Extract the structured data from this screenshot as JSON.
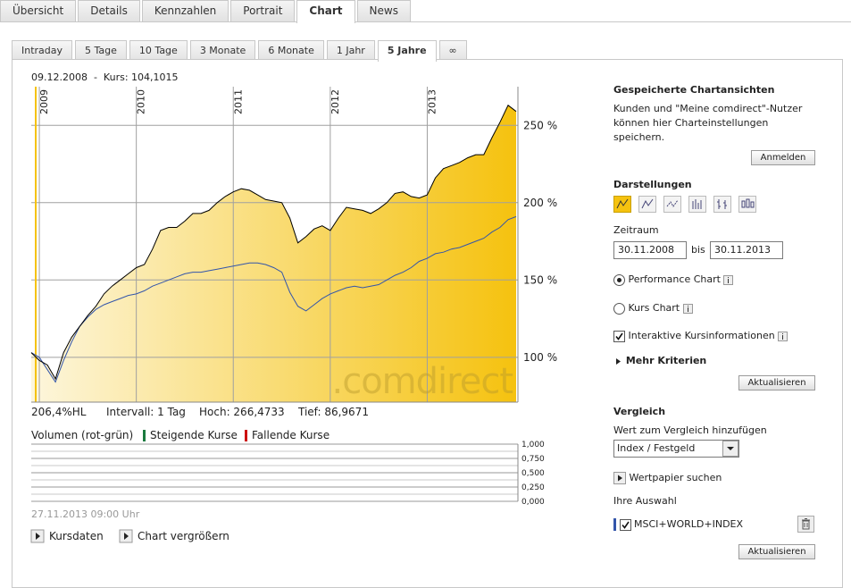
{
  "tabs": [
    "Übersicht",
    "Details",
    "Kennzahlen",
    "Portrait",
    "Chart",
    "News"
  ],
  "active_tab": 4,
  "range_tabs": [
    "Intraday",
    "5 Tage",
    "10 Tage",
    "3 Monate",
    "6 Monate",
    "1 Jahr",
    "5 Jahre",
    "∞"
  ],
  "active_range": 6,
  "chart_data": [
    {
      "type": "line",
      "header": "09.12.2008  -  Kurs: 104,1015",
      "watermark": ".comdirect",
      "stats": [
        "206,4%HL",
        "Intervall: 1 Tag",
        "Hoch: 266,4733",
        "Tief: 86,9671"
      ],
      "categories": [
        null,
        "2009",
        null,
        null,
        null,
        null,
        null,
        null,
        null,
        null,
        null,
        null,
        null,
        "2010",
        null,
        null,
        null,
        null,
        null,
        null,
        null,
        null,
        null,
        null,
        null,
        "2011",
        null,
        null,
        null,
        null,
        null,
        null,
        null,
        null,
        null,
        null,
        null,
        "2012",
        null,
        null,
        null,
        null,
        null,
        null,
        null,
        null,
        null,
        null,
        null,
        "2013",
        null,
        null,
        null,
        null,
        null,
        null,
        null,
        null,
        null,
        null,
        null
      ],
      "series": [
        {
          "color": "#000000",
          "fill": [
            "#fdf6dc",
            "#f5c20f"
          ],
          "values": [
            103,
            98,
            95,
            86,
            103,
            113,
            120,
            127,
            133,
            141,
            146,
            150,
            154,
            158,
            160,
            170,
            182,
            184,
            184,
            188,
            193,
            193,
            195,
            200,
            204,
            207,
            209,
            208,
            205,
            202,
            201,
            200,
            190,
            174,
            178,
            183,
            185,
            182,
            190,
            197,
            196,
            195,
            193,
            196,
            200,
            206,
            207,
            204,
            203,
            205,
            216,
            222,
            224,
            226,
            229,
            231,
            231,
            242,
            252,
            263,
            259
          ]
        },
        {
          "color": "#3355aa",
          "values": [
            103,
            100,
            92,
            84,
            98,
            110,
            120,
            126,
            131,
            134,
            136,
            138,
            140,
            141,
            143,
            146,
            148,
            150,
            152,
            154,
            155,
            155,
            156,
            157,
            158,
            159,
            160,
            161,
            161,
            160,
            158,
            155,
            142,
            133,
            130,
            134,
            138,
            141,
            143,
            145,
            146,
            145,
            146,
            147,
            150,
            153,
            155,
            158,
            162,
            164,
            167,
            168,
            170,
            171,
            173,
            175,
            177,
            181,
            184,
            189,
            191
          ]
        }
      ],
      "ylim": [
        71,
        275
      ],
      "yticks": [
        {
          "value": 100,
          "label": "100 %"
        },
        {
          "value": 150,
          "label": "150 %"
        },
        {
          "value": 200,
          "label": "200 %"
        },
        {
          "value": 250,
          "label": "250 %"
        }
      ],
      "grid": true
    },
    {
      "type": "bar",
      "title": "Volumen (rot-grün)",
      "legend": [
        {
          "name": "Steigende Kurse",
          "color": "#1b7a3e"
        },
        {
          "name": "Fallende Kurse",
          "color": "#cc1111"
        }
      ],
      "ylim": [
        0,
        1
      ],
      "yticks": [
        {
          "value": 0,
          "label": "0,000"
        },
        {
          "value": 0.25,
          "label": "0,250"
        },
        {
          "value": 0.5,
          "label": "0,500"
        },
        {
          "value": 0.75,
          "label": "0,750"
        },
        {
          "value": 1,
          "label": "1,000"
        }
      ],
      "grid": true,
      "footnote": "27.11.2013 09:00 Uhr"
    }
  ],
  "buttons": [
    "Kursdaten",
    "Chart vergrößern"
  ],
  "sidebar": {
    "saved": {
      "title": "Gespeicherte Chartansichten",
      "text": "Kunden und \"Meine comdirect\"-Nutzer können hier Charteinstellungen speichern.",
      "button": "Anmelden"
    },
    "display": {
      "title": "Darstellungen",
      "period_label": "Zeitraum",
      "from": "30.11.2008",
      "to_label": "bis",
      "to": "30.11.2013",
      "options": [
        {
          "label": "Performance Chart",
          "checked": true
        },
        {
          "label": "Kurs Chart",
          "checked": false
        }
      ],
      "checkbox": {
        "label": "Interaktive Kursinformationen",
        "checked": true
      },
      "more": "Mehr Kriterien",
      "button": "Aktualisieren"
    },
    "compare": {
      "title": "Vergleich",
      "add_label": "Wert zum Vergleich hinzufügen",
      "select": "Index / Festgeld",
      "search": "Wertpapier suchen",
      "selection_label": "Ihre Auswahl",
      "selection": {
        "label": "MSCI+WORLD+INDEX",
        "checked": true,
        "color": "#3355aa"
      },
      "button": "Aktualisieren"
    }
  }
}
